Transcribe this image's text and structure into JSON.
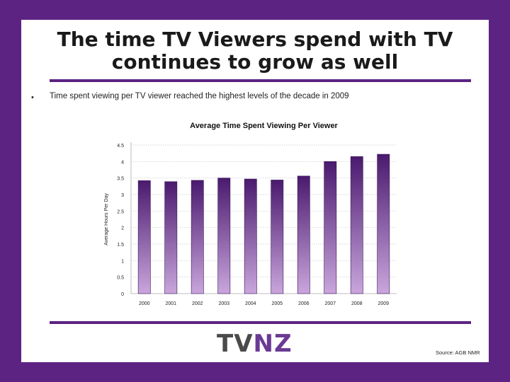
{
  "slide": {
    "title_line1": "The time TV Viewers spend with TV",
    "title_line2": "continues to grow as well",
    "bullet_symbol": "•",
    "bullet_text": "Time spent viewing per TV viewer reached the highest levels of the decade in 2009",
    "logo_left": "TV",
    "logo_right": "NZ",
    "source": "Source: AGB NMR"
  },
  "colors": {
    "frame": "#5c2382",
    "bar_top": "#4a1a6e",
    "bar_bottom": "#c9a6dc"
  },
  "chart_data": {
    "type": "bar",
    "title": "Average Time Spent Viewing Per Viewer",
    "xlabel": "",
    "ylabel": "Average Hours Per Day",
    "categories": [
      "2000",
      "2001",
      "2002",
      "2003",
      "2004",
      "2005",
      "2006",
      "2007",
      "2008",
      "2009"
    ],
    "values": [
      3.42,
      3.39,
      3.43,
      3.5,
      3.47,
      3.44,
      3.56,
      4.0,
      4.15,
      4.22
    ],
    "ylim": [
      0,
      4.5
    ],
    "yticks": [
      "0",
      "0.5",
      "1",
      "1.5",
      "2",
      "2.5",
      "3",
      "3.5",
      "4",
      "4.5"
    ],
    "grid": true,
    "legend": "none"
  }
}
